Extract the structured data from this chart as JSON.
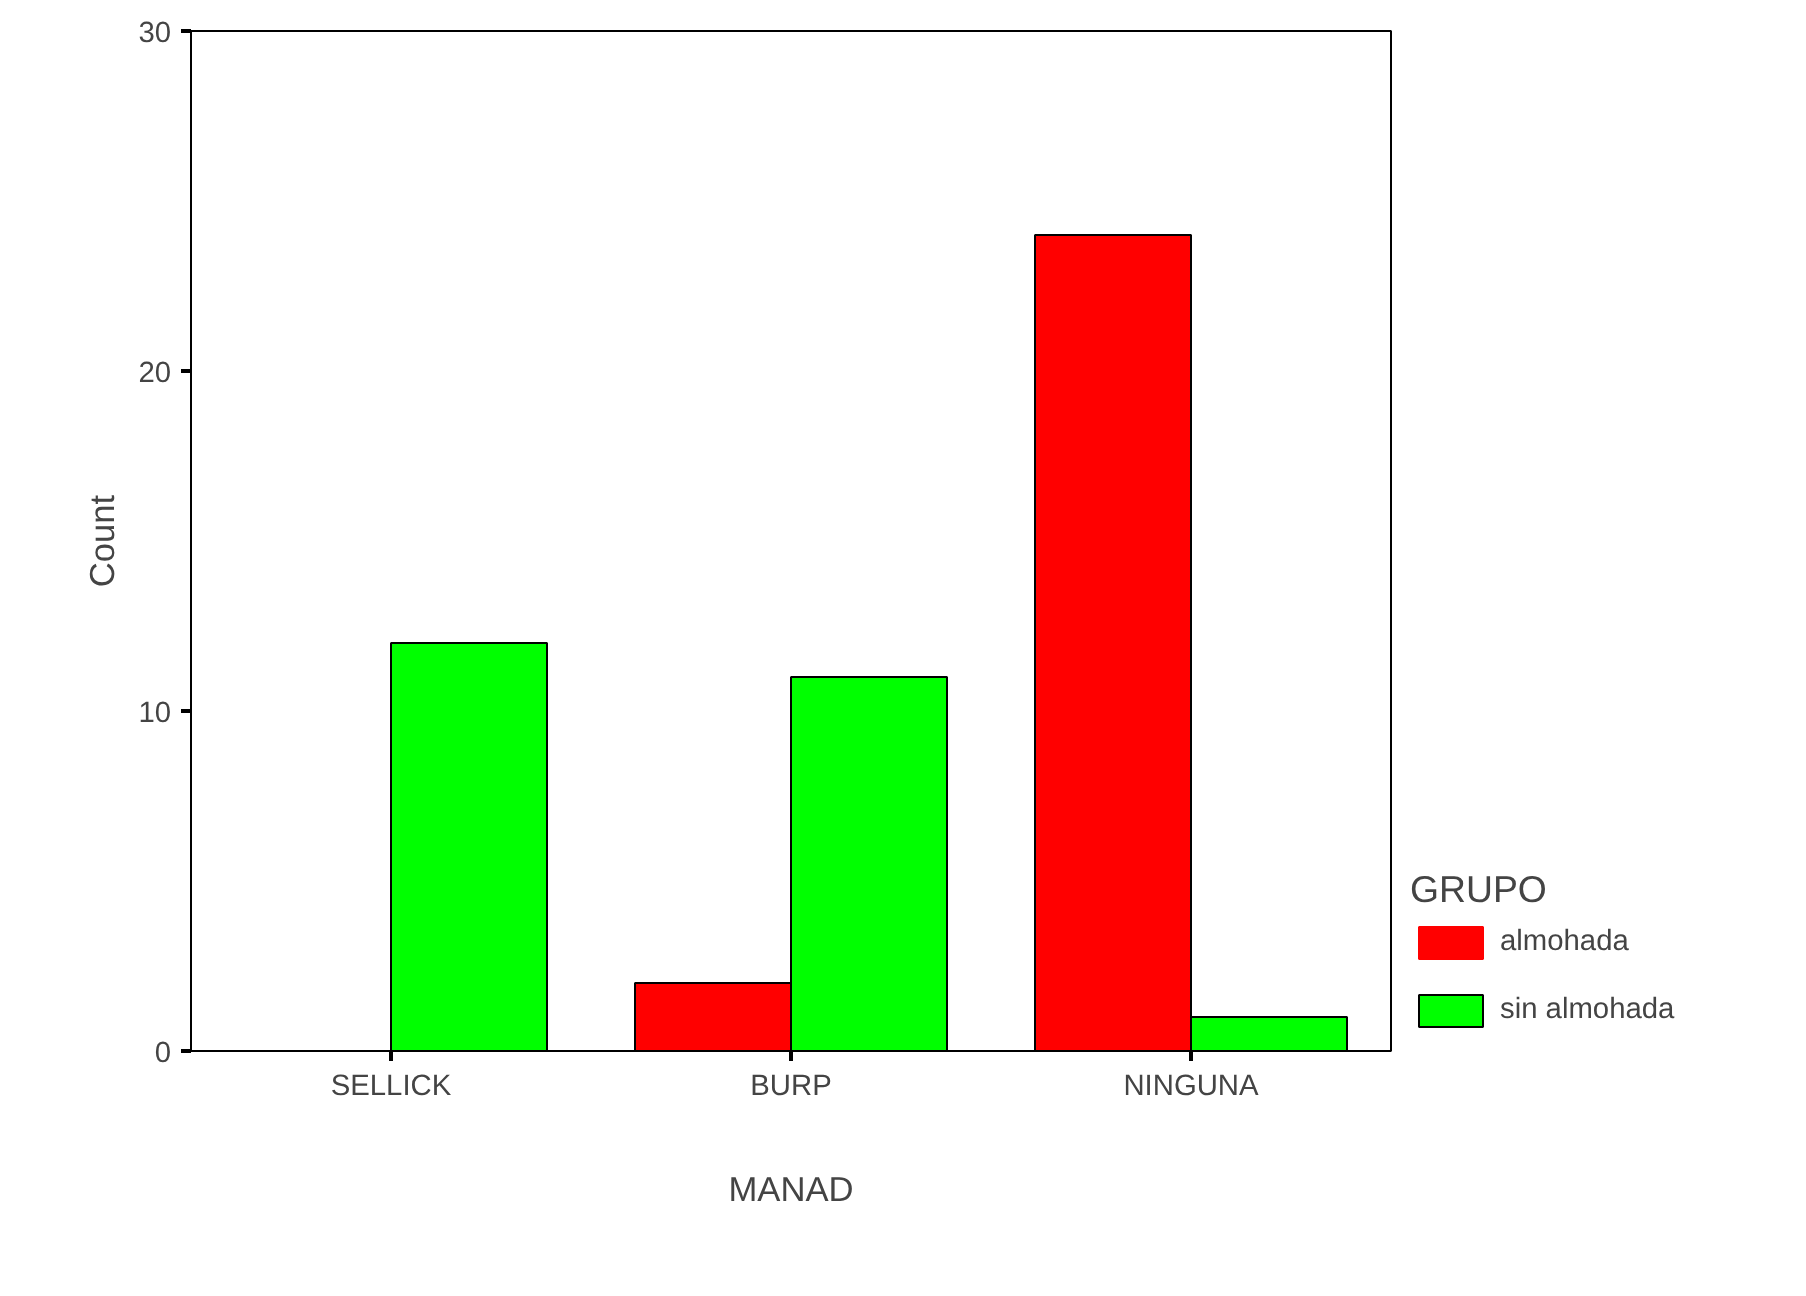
{
  "chart_data": {
    "type": "bar",
    "categories": [
      "SELLICK",
      "BURP",
      "NINGUNA"
    ],
    "xlabel": "MANAD",
    "ylabel": "Count",
    "legend_title": "GRUPO",
    "ylim": [
      0,
      30
    ],
    "yticks": [
      0,
      10,
      20,
      30
    ],
    "grid": false,
    "legend": "right",
    "series": [
      {
        "name": "almohada",
        "color": "#ff0000",
        "values": [
          0,
          2,
          24
        ]
      },
      {
        "name": "sin almohada",
        "color": "#00ff00",
        "values": [
          12,
          11,
          1
        ]
      }
    ]
  }
}
